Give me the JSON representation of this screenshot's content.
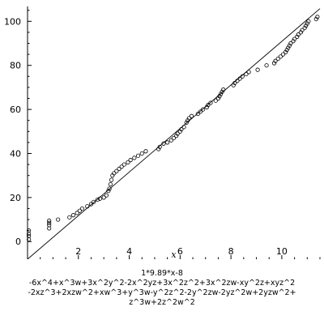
{
  "chart_data": {
    "type": "scatter",
    "xlabel": "x",
    "ylabel": "",
    "xlim": [
      0,
      11.5
    ],
    "ylim": [
      -8,
      106
    ],
    "x_ticks": [
      2,
      4,
      6,
      8,
      10
    ],
    "y_ticks": [
      0,
      20,
      40,
      60,
      80,
      100
    ],
    "grid": false,
    "caption_lines": [
      "1*9.89*x-8",
      "-6x^4+x^3w+3x^2y^2-2x^2yz+3x^2z^2+3x^2zw-xy^2z+xyz^2",
      "-2xz^3+2xzw^2+xw^3+y^3w-y^2z^2-2y^2zw-2yz^2w+2yzw^2+",
      "z^3w+2z^2w^2"
    ],
    "line": {
      "slope": 9.89,
      "intercept": -8,
      "x_range": [
        0,
        11.5
      ]
    },
    "points": [
      [
        0.05,
        1
      ],
      [
        0.05,
        2.5
      ],
      [
        0.05,
        3.5
      ],
      [
        0.05,
        5
      ],
      [
        0.85,
        6
      ],
      [
        0.85,
        7.5
      ],
      [
        0.85,
        8.5
      ],
      [
        0.85,
        9.5
      ],
      [
        1.2,
        10
      ],
      [
        1.65,
        11
      ],
      [
        1.8,
        12
      ],
      [
        1.95,
        13
      ],
      [
        2.05,
        14
      ],
      [
        2.15,
        15
      ],
      [
        2.35,
        16
      ],
      [
        2.5,
        17
      ],
      [
        2.6,
        18
      ],
      [
        2.75,
        19
      ],
      [
        2.85,
        19.5
      ],
      [
        3.0,
        20
      ],
      [
        3.1,
        21
      ],
      [
        3.18,
        23
      ],
      [
        3.22,
        24
      ],
      [
        3.26,
        26
      ],
      [
        3.3,
        28
      ],
      [
        3.34,
        30
      ],
      [
        3.4,
        31
      ],
      [
        3.5,
        32
      ],
      [
        3.6,
        33
      ],
      [
        3.7,
        34
      ],
      [
        3.8,
        35
      ],
      [
        3.95,
        36
      ],
      [
        4.05,
        37
      ],
      [
        4.2,
        38
      ],
      [
        4.35,
        39
      ],
      [
        4.5,
        40
      ],
      [
        4.65,
        41
      ],
      [
        5.15,
        42
      ],
      [
        5.2,
        43
      ],
      [
        5.35,
        44.5
      ],
      [
        5.5,
        45
      ],
      [
        5.65,
        46
      ],
      [
        5.75,
        47
      ],
      [
        5.85,
        48
      ],
      [
        5.9,
        49
      ],
      [
        6.0,
        50
      ],
      [
        6.05,
        51
      ],
      [
        6.15,
        52
      ],
      [
        6.25,
        54
      ],
      [
        6.3,
        55
      ],
      [
        6.35,
        56
      ],
      [
        6.45,
        57
      ],
      [
        6.7,
        58
      ],
      [
        6.8,
        59
      ],
      [
        6.9,
        60
      ],
      [
        7.05,
        61
      ],
      [
        7.1,
        62
      ],
      [
        7.2,
        63
      ],
      [
        7.4,
        64
      ],
      [
        7.5,
        65
      ],
      [
        7.55,
        66
      ],
      [
        7.6,
        67
      ],
      [
        7.65,
        68
      ],
      [
        7.7,
        69
      ],
      [
        8.1,
        71
      ],
      [
        8.15,
        72
      ],
      [
        8.25,
        73
      ],
      [
        8.35,
        74
      ],
      [
        8.45,
        75
      ],
      [
        8.6,
        76
      ],
      [
        8.7,
        77
      ],
      [
        9.05,
        78
      ],
      [
        9.4,
        80
      ],
      [
        9.7,
        81
      ],
      [
        9.75,
        82
      ],
      [
        9.85,
        83
      ],
      [
        9.95,
        84
      ],
      [
        10.05,
        85
      ],
      [
        10.15,
        86
      ],
      [
        10.2,
        87
      ],
      [
        10.25,
        88
      ],
      [
        10.3,
        89
      ],
      [
        10.35,
        90
      ],
      [
        10.45,
        91
      ],
      [
        10.5,
        92
      ],
      [
        10.6,
        93
      ],
      [
        10.65,
        94
      ],
      [
        10.75,
        95
      ],
      [
        10.8,
        96
      ],
      [
        10.9,
        97
      ],
      [
        10.95,
        98
      ],
      [
        11.0,
        99
      ],
      [
        11.05,
        100
      ],
      [
        11.35,
        101
      ],
      [
        11.4,
        102
      ]
    ]
  }
}
